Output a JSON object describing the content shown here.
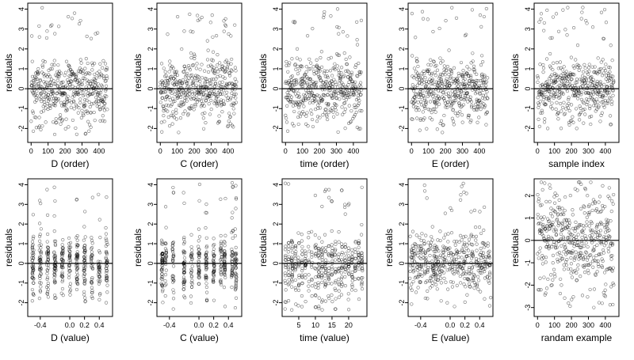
{
  "figure": {
    "ylabel": "residuals",
    "colors": {
      "points": "#000000",
      "axis": "#000000",
      "background": "#ffffff"
    }
  },
  "chart_data": [
    {
      "type": "scatter",
      "xlabel": "D (order)",
      "ylabel": "residuals",
      "xlim": [
        -20,
        480
      ],
      "ylim": [
        -2.7,
        4.3
      ],
      "xticks": [
        0,
        100,
        200,
        300,
        400
      ],
      "yticks": [
        -2,
        -1,
        0,
        1,
        2,
        3,
        4
      ],
      "reference_line": 0,
      "n_points": 450,
      "x_distribution": "index",
      "y_spread": 0.75,
      "y_distribution": "normal",
      "y_max_outlier": 4.1,
      "y_min_outlier": -2.3
    },
    {
      "type": "scatter",
      "xlabel": "C (order)",
      "ylabel": "residuals",
      "xlim": [
        -20,
        480
      ],
      "ylim": [
        -2.7,
        4.3
      ],
      "xticks": [
        0,
        100,
        200,
        300,
        400
      ],
      "yticks": [
        -2,
        -1,
        0,
        1,
        2,
        3,
        4
      ],
      "reference_line": 0,
      "n_points": 450,
      "x_distribution": "index",
      "y_spread": 0.75,
      "y_distribution": "normal",
      "y_max_outlier": 4.1,
      "y_min_outlier": -2.2
    },
    {
      "type": "scatter",
      "xlabel": "time (order)",
      "ylabel": "residuals",
      "xlim": [
        -20,
        480
      ],
      "ylim": [
        -2.7,
        4.3
      ],
      "xticks": [
        0,
        100,
        200,
        300,
        400
      ],
      "yticks": [
        -2,
        -1,
        0,
        1,
        2,
        3,
        4
      ],
      "reference_line": 0,
      "n_points": 450,
      "x_distribution": "index",
      "y_spread": 0.75,
      "y_distribution": "normal",
      "y_max_outlier": 4.1,
      "y_min_outlier": -2.2
    },
    {
      "type": "scatter",
      "xlabel": "E (order)",
      "ylabel": "residuals",
      "xlim": [
        -20,
        480
      ],
      "ylim": [
        -2.7,
        4.3
      ],
      "xticks": [
        0,
        100,
        200,
        300,
        400
      ],
      "yticks": [
        -2,
        -1,
        0,
        1,
        2,
        3,
        4
      ],
      "reference_line": 0,
      "n_points": 450,
      "x_distribution": "index",
      "y_spread": 0.75,
      "y_distribution": "normal",
      "y_max_outlier": 4.1,
      "y_min_outlier": -2.2
    },
    {
      "type": "scatter",
      "xlabel": "sample index",
      "ylabel": "residuals",
      "xlim": [
        -20,
        480
      ],
      "ylim": [
        -2.7,
        4.3
      ],
      "xticks": [
        0,
        100,
        200,
        300,
        400
      ],
      "yticks": [
        -2,
        -1,
        0,
        1,
        2,
        3,
        4
      ],
      "reference_line": 0,
      "n_points": 450,
      "x_distribution": "index",
      "y_spread": 0.75,
      "y_distribution": "normal",
      "y_max_outlier": 4.1,
      "y_min_outlier": -2.0
    },
    {
      "type": "scatter",
      "xlabel": "D (value)",
      "ylabel": "residuals",
      "xlim": [
        -0.57,
        0.58
      ],
      "ylim": [
        -2.7,
        4.3
      ],
      "xticks": [
        -0.4,
        0.0,
        0.2,
        0.4
      ],
      "xtick_labels": [
        "-0.4",
        "0.0",
        "0.2",
        "0.4"
      ],
      "yticks": [
        -2,
        -1,
        0,
        1,
        2,
        3,
        4
      ],
      "reference_line": 0,
      "n_points": 450,
      "x_distribution": "discrete",
      "x_levels": [
        -0.5,
        -0.4,
        -0.3,
        -0.2,
        -0.1,
        0.0,
        0.1,
        0.2,
        0.3,
        0.4,
        0.5
      ],
      "x_jitter": 0.012,
      "y_spread": 0.75,
      "y_distribution": "normal",
      "y_max_outlier": 4.0,
      "y_min_outlier": -2.0
    },
    {
      "type": "scatter",
      "xlabel": "C (value)",
      "ylabel": "residuals",
      "xlim": [
        -0.57,
        0.58
      ],
      "ylim": [
        -2.7,
        4.3
      ],
      "xticks": [
        -0.4,
        0.0,
        0.2,
        0.4
      ],
      "xtick_labels": [
        "-0.4",
        "0.0",
        "0.2",
        "0.4"
      ],
      "yticks": [
        -2,
        -1,
        0,
        1,
        2,
        3,
        4
      ],
      "reference_line": 0,
      "n_points": 450,
      "x_distribution": "discrete",
      "x_levels": [
        -0.5,
        -0.45,
        -0.35,
        -0.2,
        -0.1,
        0.0,
        0.1,
        0.2,
        0.3,
        0.35,
        0.45,
        0.5
      ],
      "x_jitter": 0.01,
      "y_spread": 0.7,
      "y_distribution": "normal",
      "y_max_outlier": 4.1,
      "y_min_outlier": -2.4
    },
    {
      "type": "scatter",
      "xlabel": "time (value)",
      "ylabel": "residuals",
      "xlim": [
        0,
        25.5
      ],
      "ylim": [
        -2.7,
        4.3
      ],
      "xticks": [
        5,
        10,
        15,
        20
      ],
      "yticks": [
        -2,
        -1,
        0,
        1,
        2,
        3,
        4
      ],
      "reference_line": 0,
      "n_points": 450,
      "x_distribution": "discrete",
      "x_levels": [
        1,
        2,
        3,
        4,
        5,
        6,
        7,
        8,
        9,
        10,
        11,
        12,
        13,
        14,
        15,
        16,
        17,
        18,
        19,
        20,
        21,
        22,
        23,
        24
      ],
      "x_jitter": 0.15,
      "y_spread": 0.75,
      "y_distribution": "normal",
      "y_max_outlier": 4.1,
      "y_min_outlier": -2.4
    },
    {
      "type": "scatter",
      "xlabel": "E (value)",
      "ylabel": "residuals",
      "xlim": [
        -0.57,
        0.58
      ],
      "ylim": [
        -2.7,
        4.3
      ],
      "xticks": [
        -0.4,
        0.0,
        0.2,
        0.4
      ],
      "xtick_labels": [
        "-0.4",
        "0.0",
        "0.2",
        "0.4"
      ],
      "yticks": [
        -2,
        -1,
        0,
        1,
        2,
        3,
        4
      ],
      "reference_line": 0,
      "n_points": 450,
      "x_distribution": "uniform",
      "x_range": [
        -0.55,
        0.55
      ],
      "y_spread": 0.75,
      "y_distribution": "normal",
      "y_max_outlier": 4.1,
      "y_min_outlier": -2.2
    },
    {
      "type": "scatter",
      "xlabel": "randam example",
      "ylabel": "residuals",
      "xlim": [
        -20,
        480
      ],
      "ylim": [
        -3.4,
        2.75
      ],
      "xticks": [
        0,
        100,
        200,
        300,
        400
      ],
      "yticks": [
        -3,
        -2,
        -1,
        0,
        1,
        2
      ],
      "reference_line": 0,
      "n_points": 450,
      "x_distribution": "index",
      "y_spread": 1.0,
      "y_distribution": "normal",
      "y_max_outlier": 2.6,
      "y_min_outlier": -3.0
    }
  ]
}
